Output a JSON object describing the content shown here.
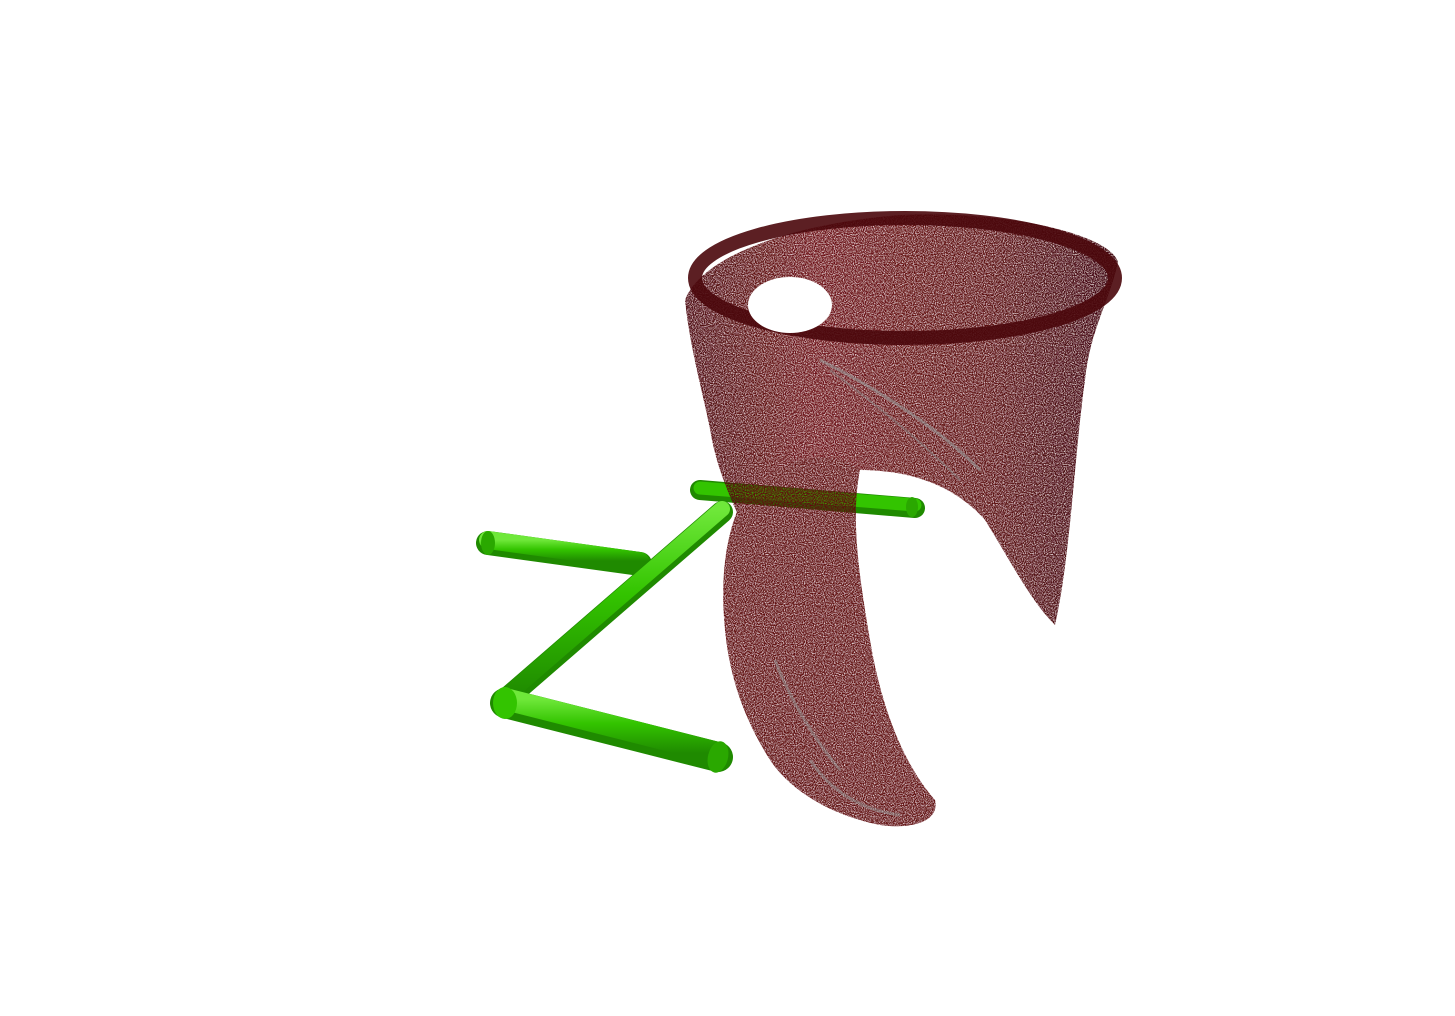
{
  "scene": {
    "background_color": "#ffffff",
    "point_cloud": {
      "object": "mug",
      "base_color": "#5a0a0e",
      "dark_color": "#3a0508",
      "highlight_color": "#8c8c8c"
    },
    "gripper": {
      "object": "parallel-jaw-gripper",
      "color": "#33c400",
      "dark_color": "#1f8a00",
      "light_color": "#6fe83a"
    }
  }
}
